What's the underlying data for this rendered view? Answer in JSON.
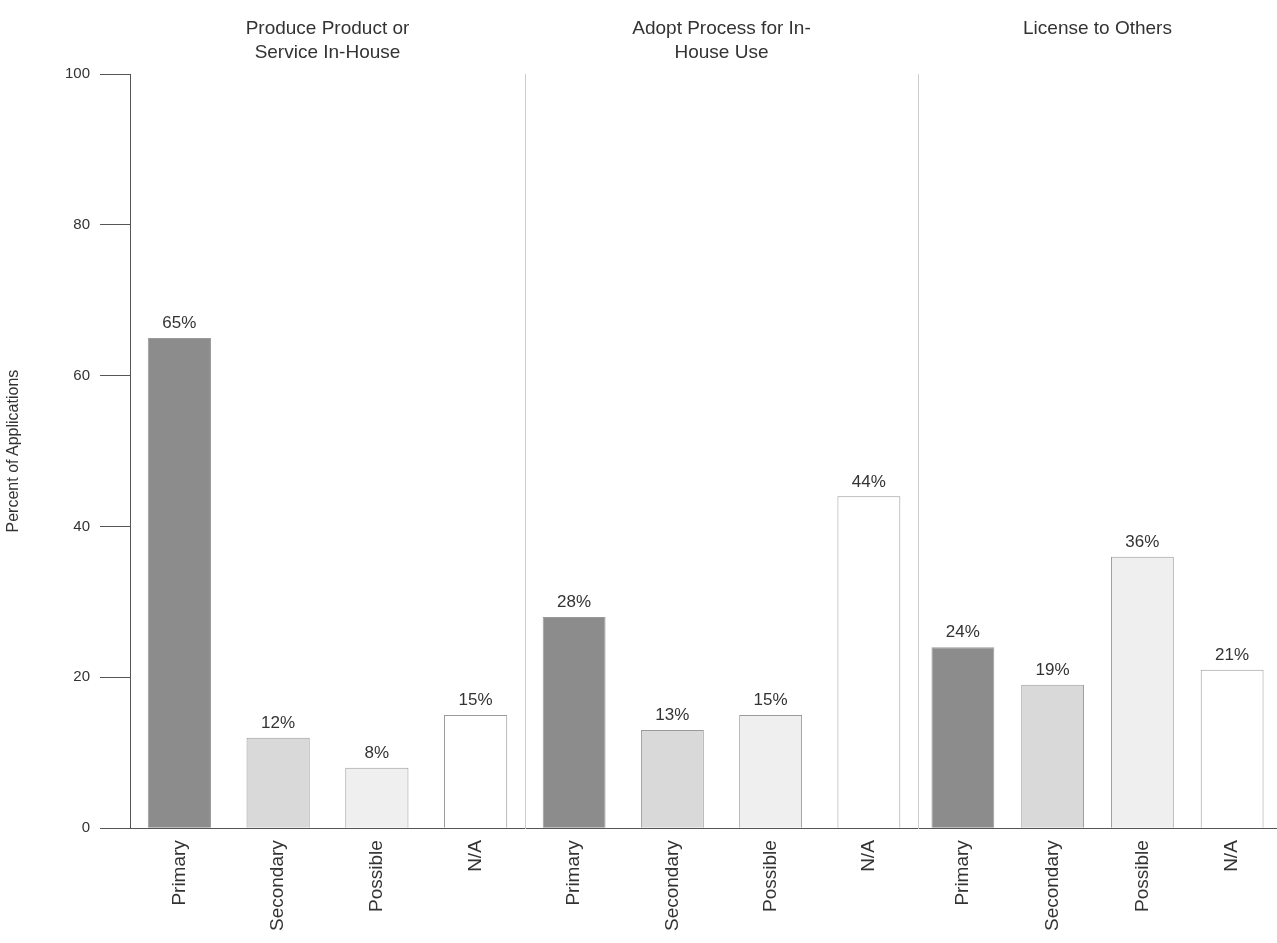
{
  "chart_data": [
    {
      "type": "bar",
      "title": "Produce Product or Service In-House",
      "ylabel": "Percent of Applications",
      "categories": [
        "Primary",
        "Secondary",
        "Possible",
        "N/A"
      ],
      "values": [
        65,
        12,
        8,
        15
      ],
      "value_labels": [
        "65%",
        "12%",
        "8%",
        "15%"
      ],
      "colors": [
        "#8c8c8c",
        "#d9d9d9",
        "#efefef",
        "#ffffff"
      ],
      "ylim": [
        0,
        100
      ],
      "yticks": [
        0,
        20,
        40,
        60,
        80,
        100
      ]
    },
    {
      "type": "bar",
      "title": "Adopt Process for In-House Use",
      "categories": [
        "Primary",
        "Secondary",
        "Possible",
        "N/A"
      ],
      "values": [
        28,
        13,
        15,
        44
      ],
      "value_labels": [
        "28%",
        "13%",
        "15%",
        "44%"
      ],
      "colors": [
        "#8c8c8c",
        "#d9d9d9",
        "#efefef",
        "#ffffff"
      ],
      "ylim": [
        0,
        100
      ],
      "yticks": [
        0,
        20,
        40,
        60,
        80,
        100
      ],
      "tick_labels": "x"
    },
    {
      "type": "bar",
      "title": "License to Others",
      "categories": [
        "Primary",
        "Secondary",
        "Possible",
        "N/A"
      ],
      "values": [
        24,
        19,
        36,
        21
      ],
      "value_labels": [
        "24%",
        "19%",
        "36%",
        "21%"
      ],
      "colors": [
        "#8c8c8c",
        "#d9d9d9",
        "#efefef",
        "#ffffff"
      ],
      "ylim": [
        0,
        100
      ],
      "yticks": [
        0,
        20,
        40,
        60,
        80,
        100
      ],
      "tick_labels": "x"
    }
  ]
}
